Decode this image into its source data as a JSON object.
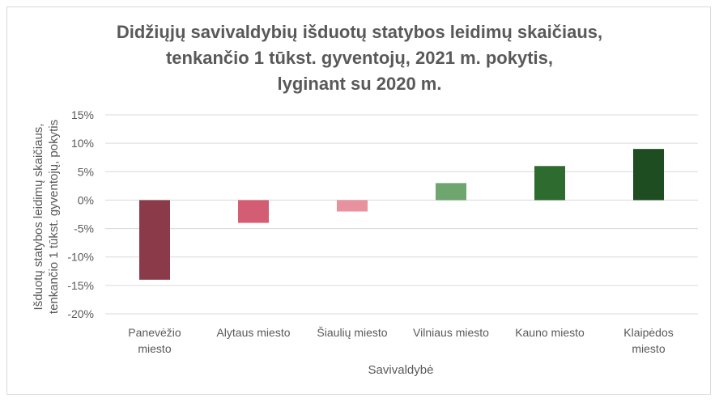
{
  "chart_data": {
    "type": "bar",
    "title_lines": [
      "Didžiųjų savivaldybių išduotų statybos leidimų skaičiaus,",
      "tenkančio 1 tūkst. gyventojų, 2021 m. pokytis,",
      "lyginant su 2020 m."
    ],
    "xlabel": "Savivaldybė",
    "ylabel_lines": [
      "Išduotų statybos leidimų skaičiaus,",
      "tenkančio 1 tūkst. gyventojų, pokytis"
    ],
    "categories": [
      [
        "Panevėžio",
        "miesto"
      ],
      [
        "Alytaus miesto"
      ],
      [
        "Šiaulių miesto"
      ],
      [
        "Vilniaus miesto"
      ],
      [
        "Kauno miesto"
      ],
      [
        "Klaipėdos",
        "miesto"
      ]
    ],
    "values": [
      -14,
      -4,
      -2,
      3,
      6,
      9
    ],
    "bar_colors": [
      "#8b3a4a",
      "#d35d72",
      "#e8919f",
      "#6fa56f",
      "#2e6b2e",
      "#1e4d22"
    ],
    "ylim": [
      -20,
      15
    ],
    "yticks": [
      15,
      10,
      5,
      0,
      -5,
      -10,
      -15,
      -20
    ],
    "ytick_labels": [
      "15%",
      "10%",
      "5%",
      "0%",
      "-5%",
      "-10%",
      "-15%",
      "-20%"
    ],
    "grid": true,
    "legend": "none"
  }
}
